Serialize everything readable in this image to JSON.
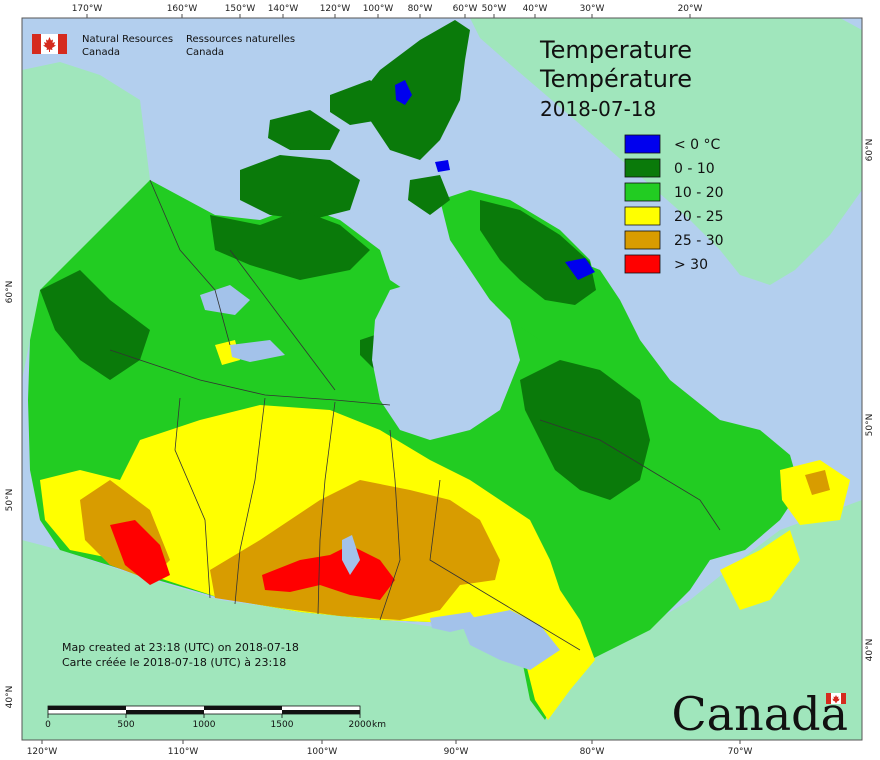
{
  "header": {
    "agency_en_line1": "Natural Resources",
    "agency_en_line2": "Canada",
    "agency_fr_line1": "Ressources naturelles",
    "agency_fr_line2": "Canada"
  },
  "title": {
    "en": "Temperature",
    "fr": "Température",
    "date": "2018-07-18"
  },
  "legend": [
    {
      "label": "< 0 °C",
      "color": "#0000ee"
    },
    {
      "label": "0 - 10",
      "color": "#0a7a0a"
    },
    {
      "label": "10 - 20",
      "color": "#22cc22"
    },
    {
      "label": "20 - 25",
      "color": "#ffff00"
    },
    {
      "label": "25 - 30",
      "color": "#d89c00"
    },
    {
      "label": "> 30",
      "color": "#ff0000"
    }
  ],
  "credits": {
    "en": "Map created at 23:18 (UTC) on 2018-07-18",
    "fr": "Carte créée le 2018-07-18 (UTC) à 23:18"
  },
  "scale": {
    "labels": [
      "0",
      "500",
      "1000",
      "1500",
      "2000"
    ],
    "unit": "km"
  },
  "wordmark": "Canada",
  "graticule": {
    "top": [
      "170°W",
      "160°W",
      "150°W",
      "140°W",
      "120°W",
      "100°W",
      "80°W",
      "60°W",
      "50°W",
      "40°W",
      "30°W",
      "20°W"
    ],
    "bottom": [
      "120°W",
      "110°W",
      "100°W",
      "90°W",
      "80°W",
      "70°W"
    ],
    "left": [
      "60°N",
      "50°N",
      "40°N"
    ],
    "right": [
      "60°N",
      "50°N",
      "40°N"
    ]
  },
  "colors": {
    "ocean": "#b3cfee",
    "foreign_land": "#a0e6bc",
    "lakes": "#a3c2ea",
    "border": "#333333",
    "flag_red": "#d52b1e"
  }
}
